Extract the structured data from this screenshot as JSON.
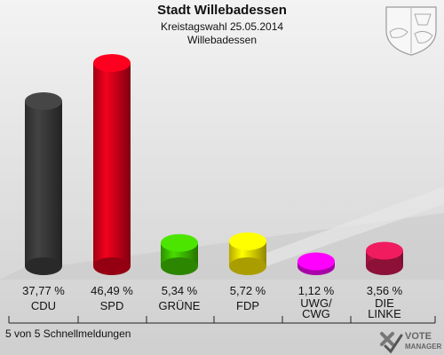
{
  "chart_data": {
    "type": "bar",
    "title": "Stadt Willebadessen",
    "subtitle_1": "Kreistagswahl 25.05.2014",
    "subtitle_2": "Willebadessen",
    "categories": [
      "CDU",
      "SPD",
      "GRÜNE",
      "FDP",
      "UWG/\nCWG",
      "DIE\nLINKE"
    ],
    "values": [
      37.77,
      46.49,
      5.34,
      5.72,
      1.12,
      3.56
    ],
    "value_labels": [
      "37,77 %",
      "46,49 %",
      "5,34 %",
      "5,72 %",
      "1,12 %",
      "3,56 %"
    ],
    "colors": [
      "#3a3a3a",
      "#d4001a",
      "#3fbf00",
      "#f3e000",
      "#f000f0",
      "#c8174f"
    ],
    "ylim": [
      0,
      50
    ],
    "grid": false,
    "legend": "none"
  },
  "footer": "5 von 5 Schnellmeldungen",
  "brand": {
    "line1": "VOTE",
    "line2": "MANAGER"
  },
  "icons": {
    "crest": "nrw-coat-of-arms-icon",
    "brand": "votemanager-logo-icon"
  }
}
